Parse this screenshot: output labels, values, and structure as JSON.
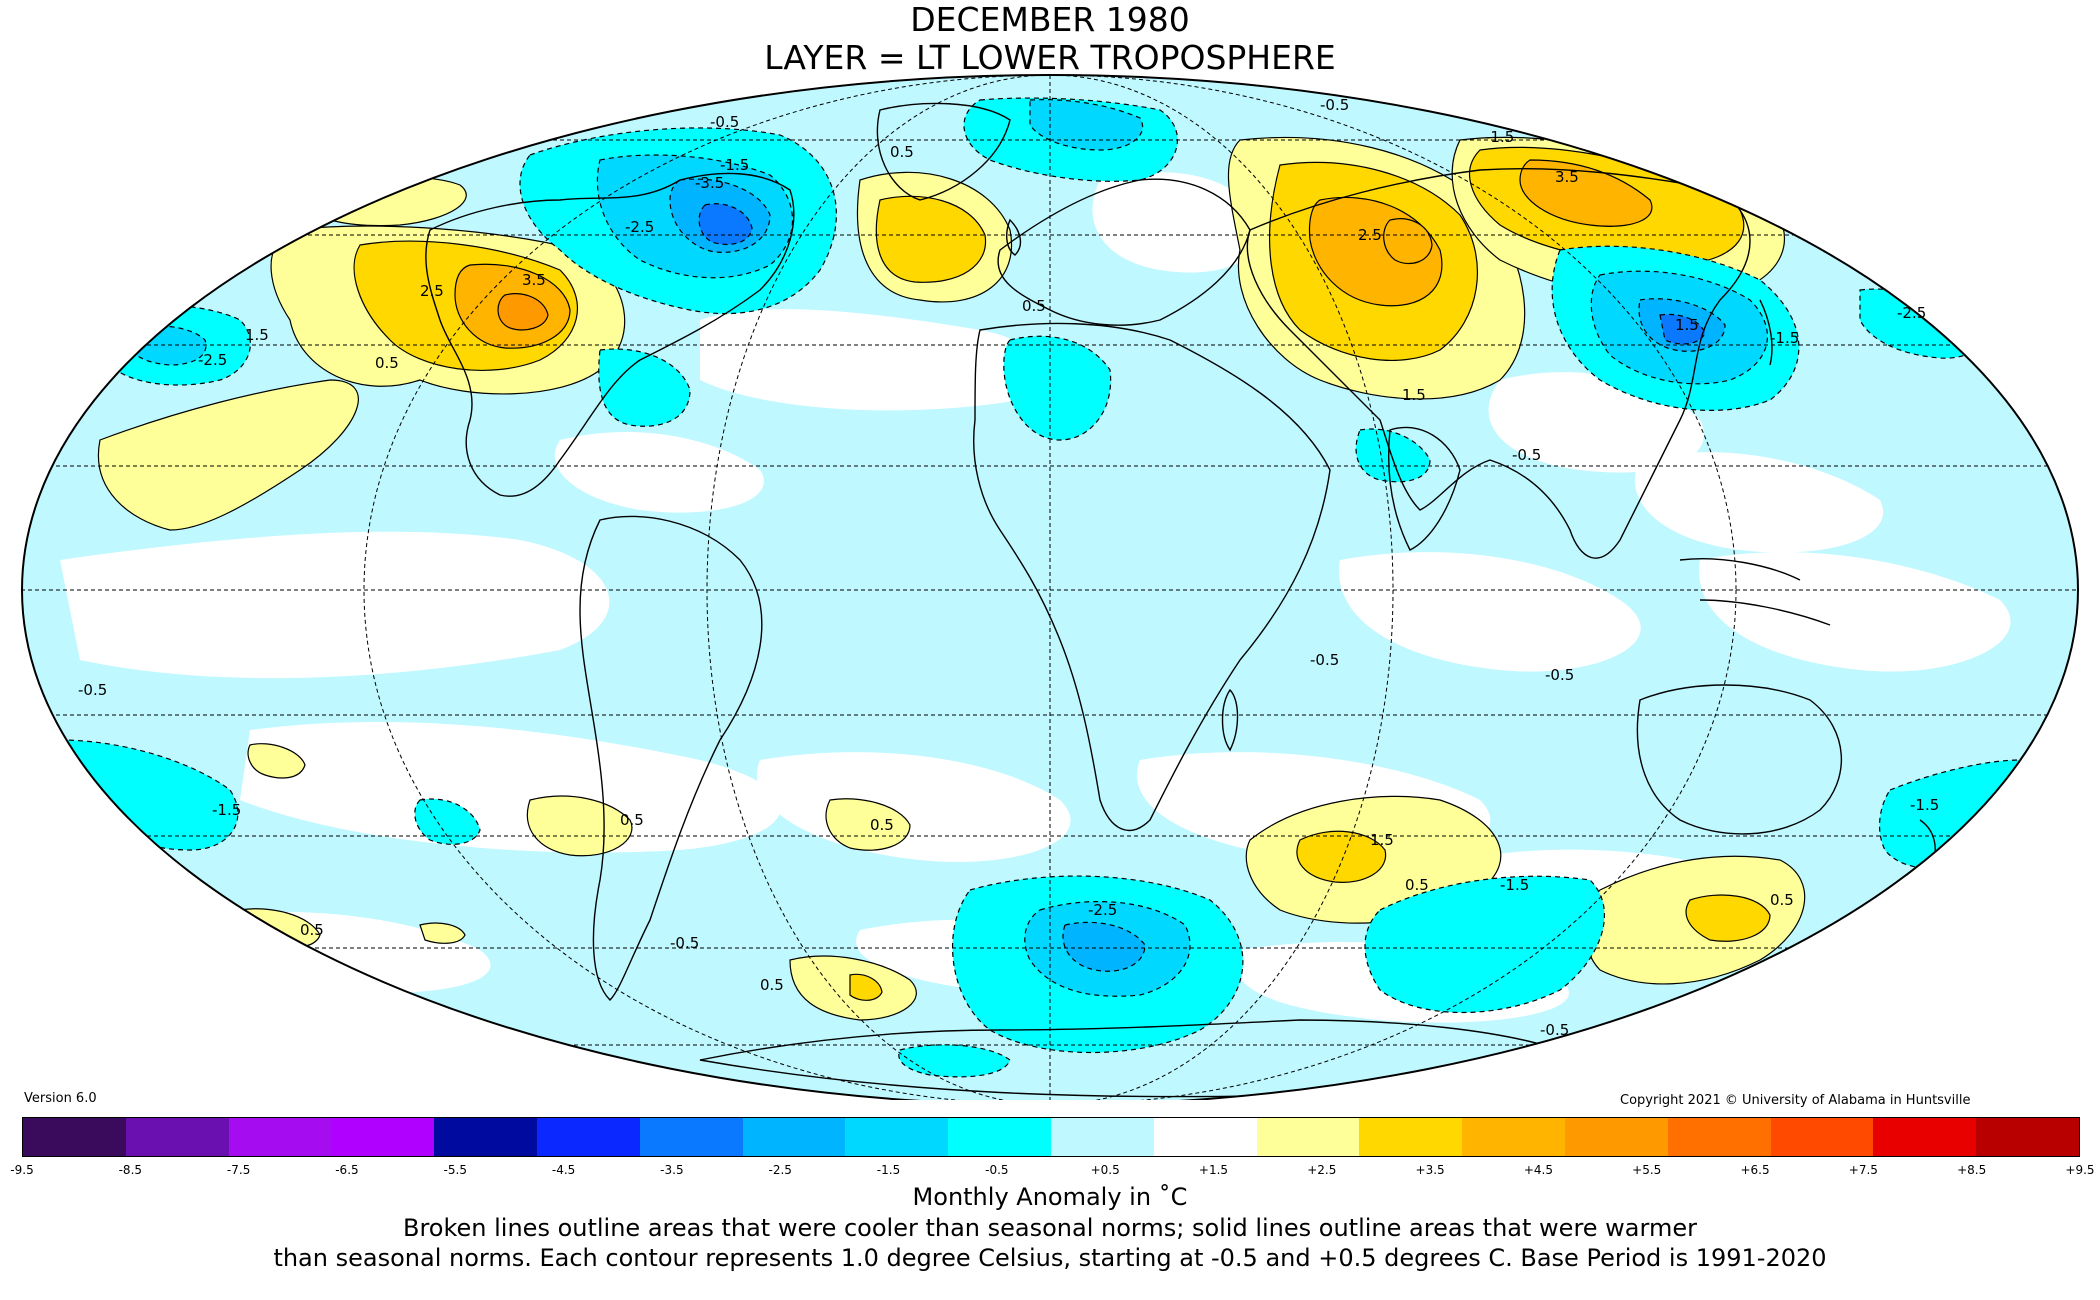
{
  "title_line1": "DECEMBER 1980",
  "title_line2": "LAYER = LT LOWER TROPOSPHERE",
  "version": "Version 6.0",
  "copyright": "Copyright 2021 © University of Alabama in Huntsville",
  "colorbar": {
    "label": "Monthly Anomaly in ˚C",
    "ticks": [
      "-9.5",
      "-8.5",
      "-7.5",
      "-6.5",
      "-5.5",
      "-4.5",
      "-3.5",
      "-2.5",
      "-1.5",
      "-0.5",
      "+0.5",
      "+1.5",
      "+2.5",
      "+3.5",
      "+4.5",
      "+5.5",
      "+6.5",
      "+7.5",
      "+8.5",
      "+9.5"
    ],
    "colors": [
      "#3a0a5c",
      "#6a0fb0",
      "#a60cf0",
      "#b000ff",
      "#000a9e",
      "#0a28ff",
      "#0a78ff",
      "#00b4ff",
      "#00d8ff",
      "#00ffff",
      "#bff8ff",
      "#ffffff",
      "#ffff99",
      "#ffd800",
      "#ffb400",
      "#ff9900",
      "#ff7000",
      "#ff4a00",
      "#e80000",
      "#b80000"
    ]
  },
  "map_colors": {
    "cool_light": "#bff8ff",
    "cool_mid": "#00ffff",
    "cool_strong": "#00d8ff",
    "cool_stronger": "#00b4ff",
    "cool_deep": "#0a78ff",
    "warm_light": "#ffff99",
    "warm_mid": "#ffd800",
    "warm_strong": "#ffb400",
    "warm_deep": "#ff9900"
  },
  "contour_labels": [
    "-0.5",
    "-1.5",
    "-2.5",
    "-3.5",
    "0.5",
    "1.5",
    "2.5",
    "3.5",
    "-0.5",
    "-1.5",
    "-2.5",
    "0.5",
    "1.5",
    "2.5",
    "3.5",
    "-0.5",
    "0.5",
    "1.5",
    "-2.5",
    "-1.5",
    "0.5",
    "1.5",
    "-0.5",
    "0.5",
    "-0.5",
    "-1.5",
    "-0.5",
    "-0.5",
    "0.5",
    "0.5",
    "-0.5",
    "-1.5",
    "-2.5",
    "0.5",
    "-1.5",
    "0.5"
  ],
  "notes": [
    "Broken lines outline areas that were cooler than seasonal norms; solid lines outline areas that were warmer",
    "than seasonal norms. Each contour represents 1.0 degree Celsius, starting at -0.5 and +0.5 degrees C. Base Period is 1991-2020"
  ]
}
